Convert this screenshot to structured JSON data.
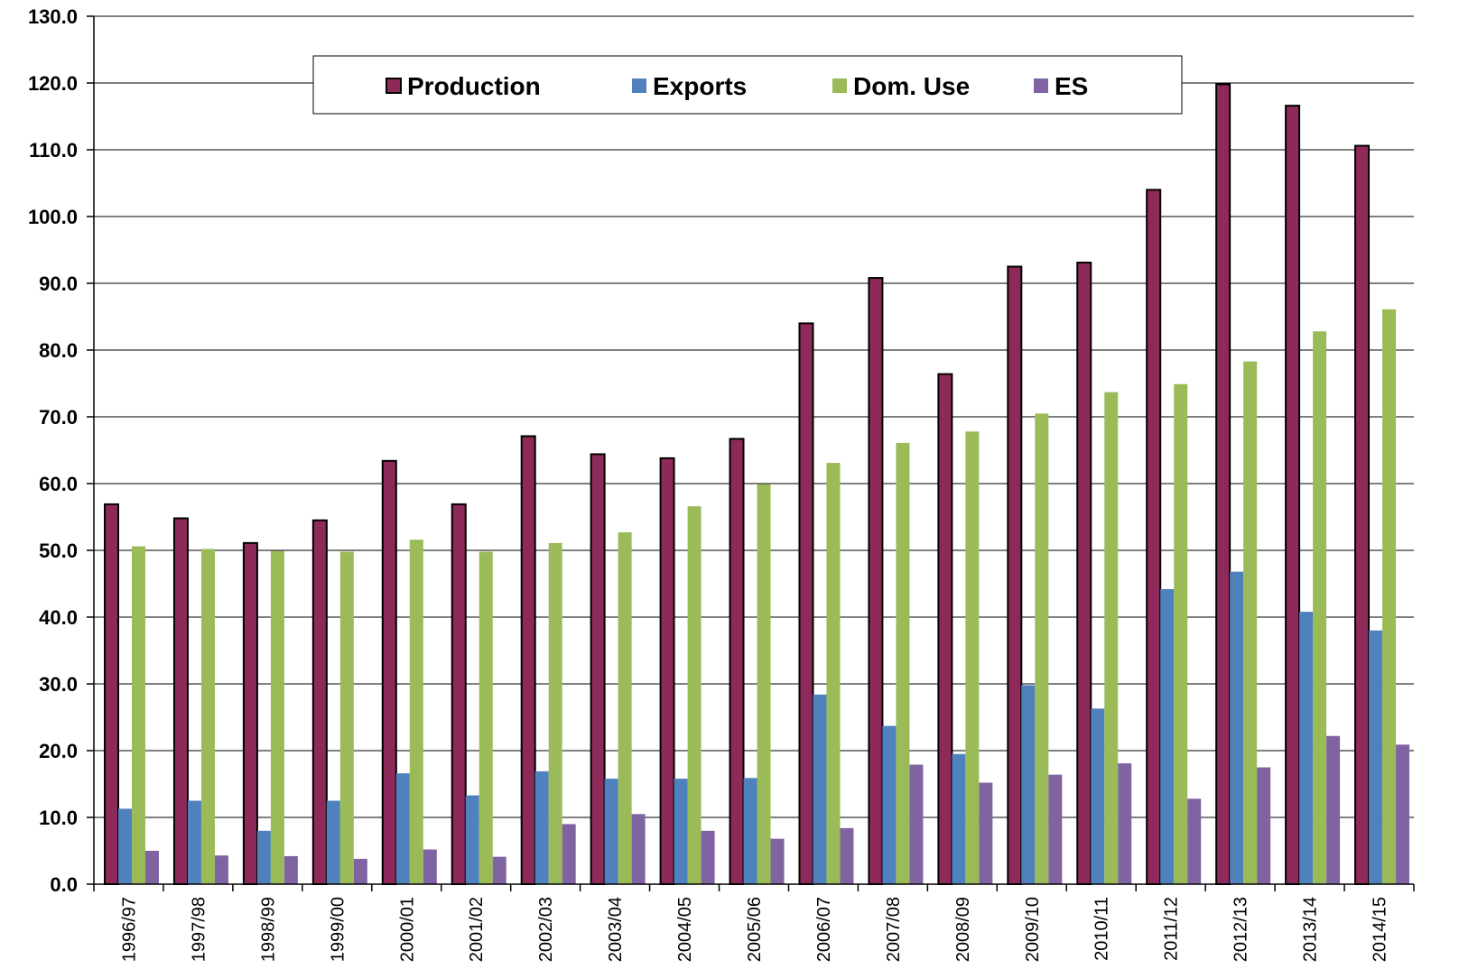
{
  "chart_data": {
    "type": "bar",
    "title": "",
    "xlabel": "",
    "ylabel": "",
    "ylim": [
      0,
      130
    ],
    "yticks": [
      "0.0",
      "10.0",
      "20.0",
      "30.0",
      "40.0",
      "50.0",
      "60.0",
      "70.0",
      "80.0",
      "90.0",
      "100.0",
      "110.0",
      "120.0",
      "130.0"
    ],
    "grid": true,
    "legend_position": "top-center",
    "categories": [
      "1996/97",
      "1997/98",
      "1998/99",
      "1999/00",
      "2000/01",
      "2001/02",
      "2002/03",
      "2003/04",
      "2004/05",
      "2005/06",
      "2006/07",
      "2007/08",
      "2008/09",
      "2009/10",
      "2010/11",
      "2011/12",
      "2012/13",
      "2013/14",
      "2014/15"
    ],
    "series": [
      {
        "name": "Production",
        "color": "#8E2A5A",
        "outline": "#000000",
        "values": [
          56.9,
          54.8,
          51.1,
          54.5,
          63.4,
          56.9,
          67.1,
          64.4,
          63.8,
          66.7,
          84.0,
          90.8,
          76.4,
          92.5,
          93.1,
          104.0,
          119.8,
          116.6,
          110.6
        ]
      },
      {
        "name": "Exports",
        "color": "#4F81BD",
        "values": [
          11.3,
          12.5,
          8.0,
          12.5,
          16.6,
          13.3,
          16.9,
          15.8,
          15.8,
          15.9,
          28.4,
          23.7,
          19.5,
          29.8,
          26.3,
          44.2,
          46.8,
          40.8,
          38.0
        ]
      },
      {
        "name": "Dom. Use",
        "color": "#9BBB59",
        "values": [
          50.6,
          50.2,
          49.9,
          49.8,
          51.6,
          49.8,
          51.1,
          52.7,
          56.6,
          59.9,
          63.1,
          66.1,
          67.8,
          70.5,
          73.7,
          74.9,
          78.3,
          82.8,
          86.1
        ]
      },
      {
        "name": "ES",
        "color": "#8064A2",
        "values": [
          5.0,
          4.3,
          4.2,
          3.8,
          5.2,
          4.1,
          9.0,
          10.5,
          8.0,
          6.8,
          8.4,
          17.9,
          15.2,
          16.4,
          18.1,
          12.8,
          17.5,
          22.2,
          20.9
        ]
      }
    ]
  }
}
